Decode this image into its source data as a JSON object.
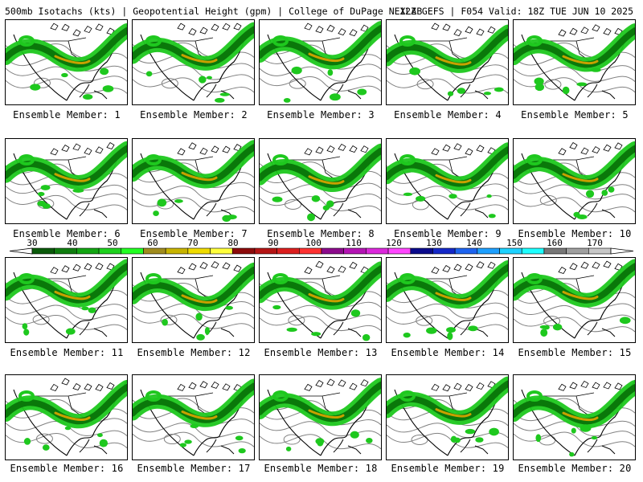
{
  "header": {
    "left": "500mb Isotachs (kts) | Geopotential Height (gpm) | College of DuPage NEXLAB",
    "right": "12Z GEFS | F054 Valid: 18Z TUE JUN 10 2025"
  },
  "members": [
    {
      "label": "Ensemble Member: 1"
    },
    {
      "label": "Ensemble Member: 2"
    },
    {
      "label": "Ensemble Member: 3"
    },
    {
      "label": "Ensemble Member: 4"
    },
    {
      "label": "Ensemble Member: 5"
    },
    {
      "label": "Ensemble Member: 6"
    },
    {
      "label": "Ensemble Member: 7"
    },
    {
      "label": "Ensemble Member: 8"
    },
    {
      "label": "Ensemble Member: 9"
    },
    {
      "label": "Ensemble Member: 10"
    },
    {
      "label": "Ensemble Member: 11"
    },
    {
      "label": "Ensemble Member: 12"
    },
    {
      "label": "Ensemble Member: 13"
    },
    {
      "label": "Ensemble Member: 14"
    },
    {
      "label": "Ensemble Member: 15"
    },
    {
      "label": "Ensemble Member: 16"
    },
    {
      "label": "Ensemble Member: 17"
    },
    {
      "label": "Ensemble Member: 18"
    },
    {
      "label": "Ensemble Member: 19"
    },
    {
      "label": "Ensemble Member: 20"
    }
  ],
  "colorbar": {
    "ticks": [
      "30",
      "40",
      "50",
      "60",
      "70",
      "80",
      "90",
      "100",
      "110",
      "120",
      "130",
      "140",
      "150",
      "160",
      "170"
    ],
    "colors": [
      "#0a5a0a",
      "#0f7d0f",
      "#12a512",
      "#1ed21e",
      "#22ff22",
      "#a08c1e",
      "#c8b400",
      "#f0dc00",
      "#ffff3c",
      "#8c0a0a",
      "#b41414",
      "#dc1e1e",
      "#ff3232",
      "#8c0a8c",
      "#b414b4",
      "#dc28dc",
      "#ff46ff",
      "#0a0a8c",
      "#1428c8",
      "#1e64f0",
      "#1ea0ff",
      "#1ed2ff",
      "#1effff",
      "#787878",
      "#a0a0a0",
      "#c8c8c8"
    ]
  },
  "map_colors": {
    "jet_light": "#1ec81e",
    "jet_dark": "#0a780a",
    "jet_core": "#c8a000",
    "height_contour": "#808080",
    "coastline": "#000000"
  }
}
